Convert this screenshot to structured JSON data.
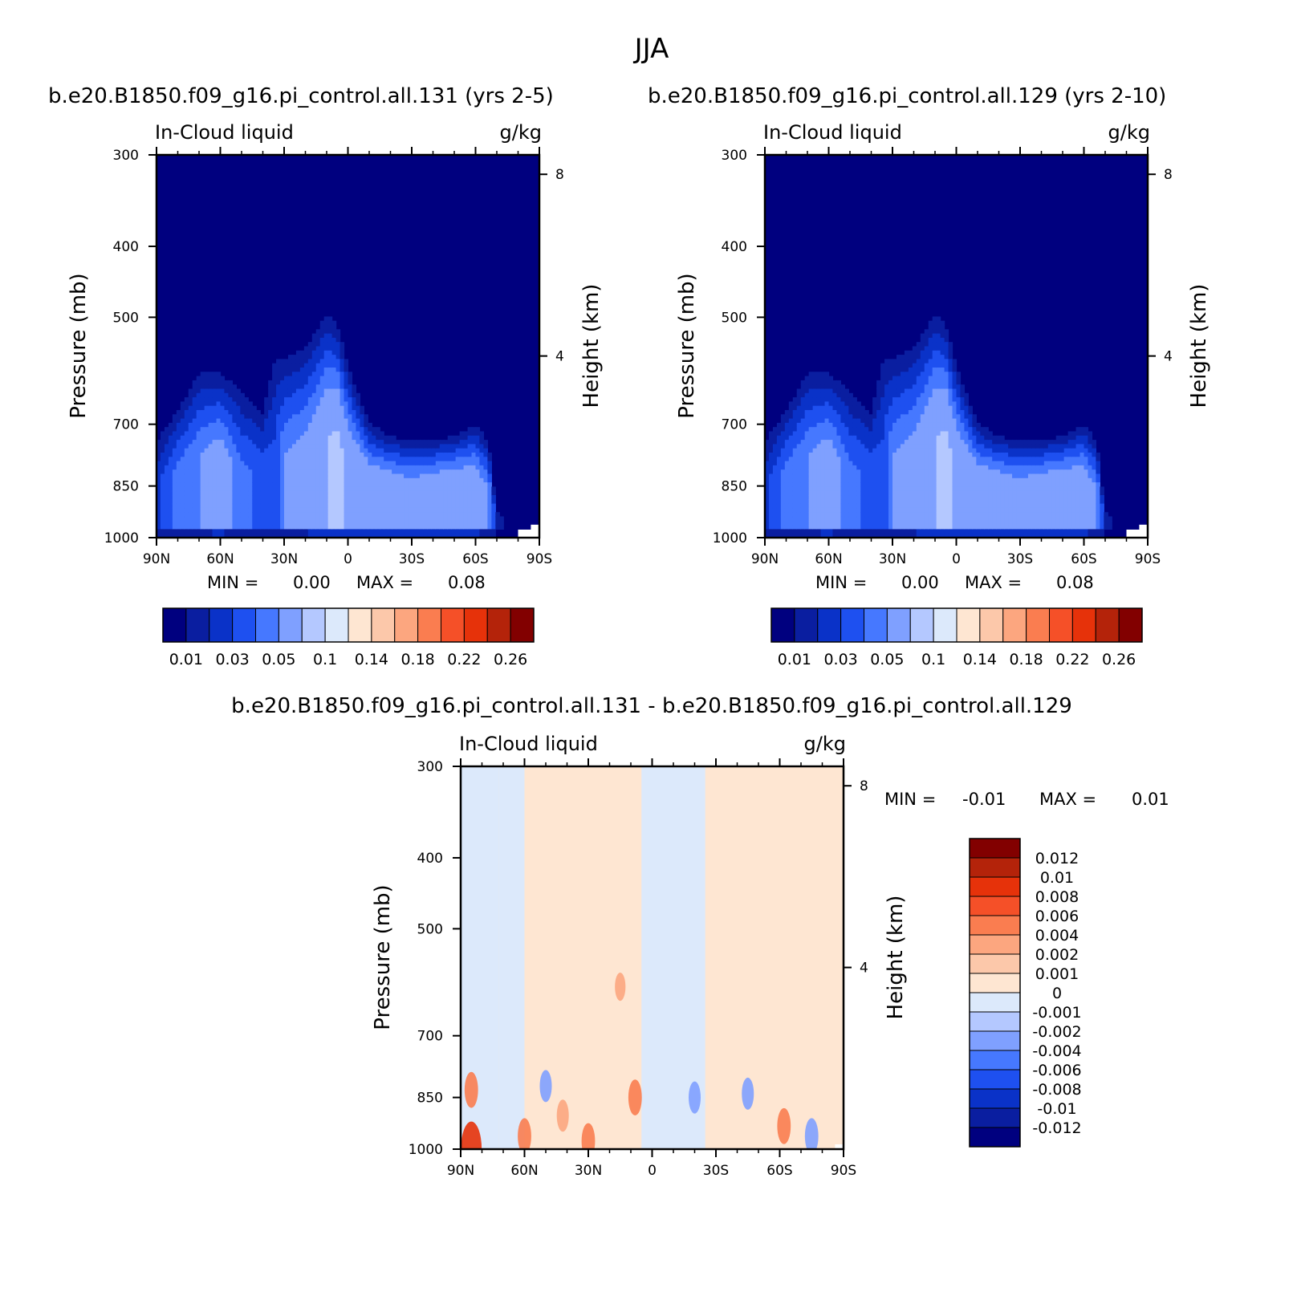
{
  "figure": {
    "title": "JJA"
  },
  "colors": {
    "seq": [
      "#00007f",
      "#0a1ea0",
      "#0a32c8",
      "#1e50f0",
      "#4678ff",
      "#7fa0ff",
      "#b4c8ff",
      "#dce9fb",
      "#fee6d2",
      "#fcc8aa",
      "#fca67f",
      "#fa7d50",
      "#f55028",
      "#e6320a",
      "#b4230a",
      "#820000"
    ],
    "diff": [
      "#00007f",
      "#0a1ea0",
      "#0a32c8",
      "#1e50f0",
      "#4678ff",
      "#7fa0ff",
      "#b4c8ff",
      "#dce9fb",
      "#fee6d2",
      "#fcc8aa",
      "#fca67f",
      "#fa7d50",
      "#f55028",
      "#e6320a",
      "#b4230a",
      "#820000"
    ]
  },
  "chart_data": [
    {
      "type": "heatmap",
      "id": "panel-131",
      "title": "b.e20.B1850.f09_g16.pi_control.all.131 (yrs 2-5)",
      "variable": "In-Cloud liquid",
      "units": "g/kg",
      "xlabel": "",
      "ylabel": "Pressure (mb)",
      "y2label": "Height (km)",
      "x_ticks": [
        "90N",
        "60N",
        "30N",
        "0",
        "30S",
        "60S",
        "90S"
      ],
      "x_tick_values": [
        90,
        60,
        30,
        0,
        -30,
        -60,
        -90
      ],
      "y_ticks": [
        300,
        400,
        500,
        700,
        850,
        1000
      ],
      "y2_ticks": [
        8,
        4
      ],
      "ylim": [
        1000,
        300
      ],
      "min_label": "MIN =",
      "min_value": "0.00",
      "max_label": "MAX =",
      "max_value": "0.08",
      "colorbar_labels": [
        "0.01",
        "0.03",
        "0.05",
        "0.1",
        "0.14",
        "0.18",
        "0.22",
        "0.26"
      ],
      "colorbar_levels": [
        0.01,
        0.02,
        0.03,
        0.04,
        0.05,
        0.07,
        0.1,
        0.12,
        0.14,
        0.16,
        0.18,
        0.2,
        0.22,
        0.24,
        0.26
      ],
      "profile_x": [
        90,
        80,
        70,
        60,
        50,
        40,
        35,
        30,
        20,
        10,
        5,
        0,
        -10,
        -20,
        -30,
        -40,
        -50,
        -60,
        -66,
        -70,
        -74,
        -78,
        -82,
        -86
      ],
      "profile_top": [
        700,
        640,
        565,
        570,
        600,
        640,
        520,
        540,
        520,
        470,
        490,
        560,
        680,
        710,
        720,
        720,
        710,
        680,
        720,
        900,
        940,
        970,
        990,
        1000
      ],
      "profile_peak": [
        0.028,
        0.045,
        0.05,
        0.06,
        0.042,
        0.038,
        0.03,
        0.05,
        0.055,
        0.068,
        0.075,
        0.065,
        0.062,
        0.062,
        0.058,
        0.064,
        0.066,
        0.06,
        0.05,
        0.02,
        0.01,
        0.005,
        0,
        0
      ]
    },
    {
      "type": "heatmap",
      "id": "panel-129",
      "title": "b.e20.B1850.f09_g16.pi_control.all.129 (yrs 2-10)",
      "variable": "In-Cloud liquid",
      "units": "g/kg",
      "xlabel": "",
      "ylabel": "Pressure (mb)",
      "y2label": "Height (km)",
      "x_ticks": [
        "90N",
        "60N",
        "30N",
        "0",
        "30S",
        "60S",
        "90S"
      ],
      "x_tick_values": [
        90,
        60,
        30,
        0,
        -30,
        -60,
        -90
      ],
      "y_ticks": [
        300,
        400,
        500,
        700,
        850,
        1000
      ],
      "y2_ticks": [
        8,
        4
      ],
      "ylim": [
        1000,
        300
      ],
      "min_label": "MIN =",
      "min_value": "0.00",
      "max_label": "MAX =",
      "max_value": "0.08",
      "colorbar_labels": [
        "0.01",
        "0.03",
        "0.05",
        "0.1",
        "0.14",
        "0.18",
        "0.22",
        "0.26"
      ],
      "colorbar_levels": [
        0.01,
        0.02,
        0.03,
        0.04,
        0.05,
        0.07,
        0.1,
        0.12,
        0.14,
        0.16,
        0.18,
        0.2,
        0.22,
        0.24,
        0.26
      ],
      "profile_x": [
        90,
        80,
        70,
        60,
        50,
        40,
        35,
        30,
        20,
        10,
        5,
        0,
        -10,
        -20,
        -30,
        -40,
        -50,
        -60,
        -66,
        -70,
        -74,
        -78,
        -82,
        -86
      ],
      "profile_top": [
        700,
        640,
        565,
        570,
        600,
        640,
        520,
        540,
        520,
        470,
        490,
        560,
        680,
        710,
        720,
        720,
        710,
        680,
        720,
        900,
        940,
        970,
        990,
        1000
      ],
      "profile_peak": [
        0.028,
        0.045,
        0.05,
        0.06,
        0.042,
        0.038,
        0.03,
        0.05,
        0.055,
        0.068,
        0.075,
        0.065,
        0.062,
        0.062,
        0.058,
        0.064,
        0.066,
        0.06,
        0.05,
        0.02,
        0.01,
        0.005,
        0,
        0
      ]
    },
    {
      "type": "heatmap",
      "id": "panel-diff",
      "title": "b.e20.B1850.f09_g16.pi_control.all.131 - b.e20.B1850.f09_g16.pi_control.all.129",
      "variable": "In-Cloud liquid",
      "units": "g/kg",
      "xlabel": "",
      "ylabel": "Pressure (mb)",
      "y2label": "Height (km)",
      "x_ticks": [
        "90N",
        "60N",
        "30N",
        "0",
        "30S",
        "60S",
        "90S"
      ],
      "x_tick_values": [
        90,
        60,
        30,
        0,
        -30,
        -60,
        -90
      ],
      "y_ticks": [
        300,
        400,
        500,
        700,
        850,
        1000
      ],
      "y2_ticks": [
        8,
        4
      ],
      "ylim": [
        1000,
        300
      ],
      "min_label": "MIN =",
      "min_value": "-0.01",
      "max_label": "MAX =",
      "max_value": "0.01",
      "colorbar_labels": [
        "0.012",
        "0.01",
        "0.008",
        "0.006",
        "0.004",
        "0.002",
        "0.001",
        "0",
        "-0.001",
        "-0.002",
        "-0.004",
        "-0.006",
        "-0.008",
        "-0.01",
        "-0.012"
      ],
      "colorbar_levels": [
        -0.012,
        -0.01,
        -0.008,
        -0.006,
        -0.004,
        -0.002,
        -0.001,
        0,
        0.001,
        0.002,
        0.004,
        0.006,
        0.008,
        0.01,
        0.012
      ],
      "bands": [
        {
          "x": [
            90,
            72
          ],
          "sign": -1
        },
        {
          "x": [
            72,
            60
          ],
          "sign": -1
        },
        {
          "x": [
            60,
            38
          ],
          "sign": 1
        },
        {
          "x": [
            38,
            8
          ],
          "sign": 1
        },
        {
          "x": [
            5,
            -25
          ],
          "sign": -1
        },
        {
          "x": [
            -25,
            -90
          ],
          "sign": 1
        }
      ],
      "blobs": [
        {
          "x": 85,
          "p": 1000,
          "value": 0.009
        },
        {
          "x": 85,
          "p": 830,
          "value": 0.004
        },
        {
          "x": 60,
          "p": 960,
          "value": 0.004
        },
        {
          "x": 42,
          "p": 900,
          "value": 0.003
        },
        {
          "x": 30,
          "p": 975,
          "value": 0.004
        },
        {
          "x": 15,
          "p": 600,
          "value": 0.002
        },
        {
          "x": 8,
          "p": 850,
          "value": 0.004
        },
        {
          "x": -20,
          "p": 850,
          "value": -0.003
        },
        {
          "x": -45,
          "p": 840,
          "value": -0.003
        },
        {
          "x": -62,
          "p": 930,
          "value": 0.004
        },
        {
          "x": -75,
          "p": 960,
          "value": -0.004
        },
        {
          "x": 50,
          "p": 820,
          "value": -0.003
        }
      ]
    }
  ]
}
